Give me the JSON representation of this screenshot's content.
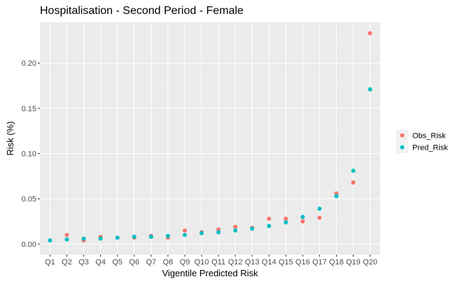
{
  "chart_data": {
    "type": "scatter",
    "title": "Hospitalisation - Second Period -  Female",
    "xlabel": "Vigentile Predicted Risk",
    "ylabel": "Risk (%)",
    "categories": [
      "Q1",
      "Q2",
      "Q3",
      "Q4",
      "Q5",
      "Q6",
      "Q7",
      "Q8",
      "Q9",
      "Q10",
      "Q11",
      "Q12",
      "Q13",
      "Q14",
      "Q15",
      "Q16",
      "Q17",
      "Q18",
      "Q19",
      "Q20"
    ],
    "yticks": [
      0.0,
      0.05,
      0.1,
      0.15,
      0.2
    ],
    "ytick_labels": [
      "0.00",
      "0.05",
      "0.10",
      "0.15",
      "0.20"
    ],
    "ylim": [
      -0.0117,
      0.245
    ],
    "grid": true,
    "legend_position": "right",
    "series": [
      {
        "name": "Obs_Risk",
        "color": "#F8766D",
        "values": [
          0.004,
          0.01,
          0.004,
          0.008,
          0.007,
          0.007,
          0.009,
          0.007,
          0.015,
          0.013,
          0.016,
          0.019,
          0.018,
          0.028,
          0.028,
          0.025,
          0.029,
          0.056,
          0.068,
          0.233
        ]
      },
      {
        "name": "Pred_Risk",
        "color": "#00BFC4",
        "values": [
          0.004,
          0.005,
          0.006,
          0.006,
          0.007,
          0.008,
          0.008,
          0.009,
          0.01,
          0.012,
          0.013,
          0.015,
          0.017,
          0.02,
          0.024,
          0.03,
          0.039,
          0.053,
          0.081,
          0.171
        ]
      }
    ]
  }
}
